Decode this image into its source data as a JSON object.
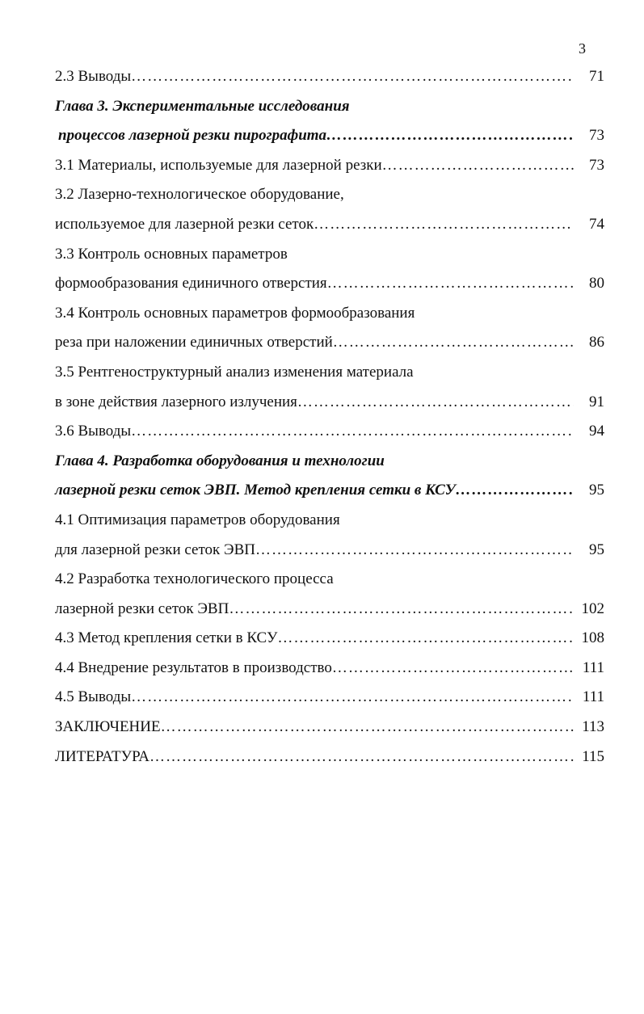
{
  "page_number": "3",
  "entries": [
    {
      "text": "2.3 Выводы",
      "page": "71",
      "style": "normal"
    },
    {
      "text": "Глава 3. Экспериментальные исследования",
      "page": "",
      "style": "bold-italic"
    },
    {
      "text": "процессов лазерной резки пирографита",
      "page": "73",
      "style": "bold-italic"
    },
    {
      "text": "3.1 Материалы, используемые для лазерной резки",
      "page": "73",
      "style": "normal"
    },
    {
      "text": "3.2 Лазерно-технологическое оборудование,",
      "page": "",
      "style": "normal"
    },
    {
      "text": "используемое для лазерной резки сеток",
      "page": "74",
      "style": "normal"
    },
    {
      "text": "3.3 Контроль основных параметров",
      "page": "",
      "style": "normal"
    },
    {
      "text": "формообразования единичного отверстия",
      "page": "80",
      "style": "normal"
    },
    {
      "text": "3.4 Контроль основных параметров формообразования",
      "page": "",
      "style": "normal"
    },
    {
      "text": "реза при наложении единичных отверстий",
      "page": "86",
      "style": "normal"
    },
    {
      "text": "3.5 Рентгеноструктурный анализ изменения материала",
      "page": "",
      "style": "normal"
    },
    {
      "text": "в зоне действия лазерного излучения",
      "page": "91",
      "style": "normal"
    },
    {
      "text": "3.6 Выводы",
      "page": "94",
      "style": "normal"
    },
    {
      "text": "Глава 4. Разработка оборудования и технологии",
      "page": "",
      "style": "bold-italic"
    },
    {
      "text": "лазерной резки сеток ЭВП. Метод крепления сетки в КСУ",
      "page": "95",
      "style": "bold-italic"
    },
    {
      "text": "4.1 Оптимизация параметров оборудования",
      "page": "",
      "style": "normal"
    },
    {
      "text": "для лазерной резки сеток ЭВП",
      "page": "95",
      "style": "normal"
    },
    {
      "text": "4.2 Разработка технологического процесса",
      "page": "",
      "style": "normal"
    },
    {
      "text": "лазерной резки сеток ЭВП",
      "page": "102",
      "style": "normal"
    },
    {
      "text": "4.3 Метод крепления сетки в КСУ",
      "page": "108",
      "style": "normal"
    },
    {
      "text": "4.4 Внедрение результатов в производство",
      "page": "111",
      "style": "normal"
    },
    {
      "text": "4.5 Выводы",
      "page": "111",
      "style": "normal"
    },
    {
      "text": "ЗАКЛЮЧЕНИЕ",
      "page": "113",
      "style": "normal"
    },
    {
      "text": "ЛИТЕРАТУРА",
      "page": "115",
      "style": "normal"
    }
  ]
}
